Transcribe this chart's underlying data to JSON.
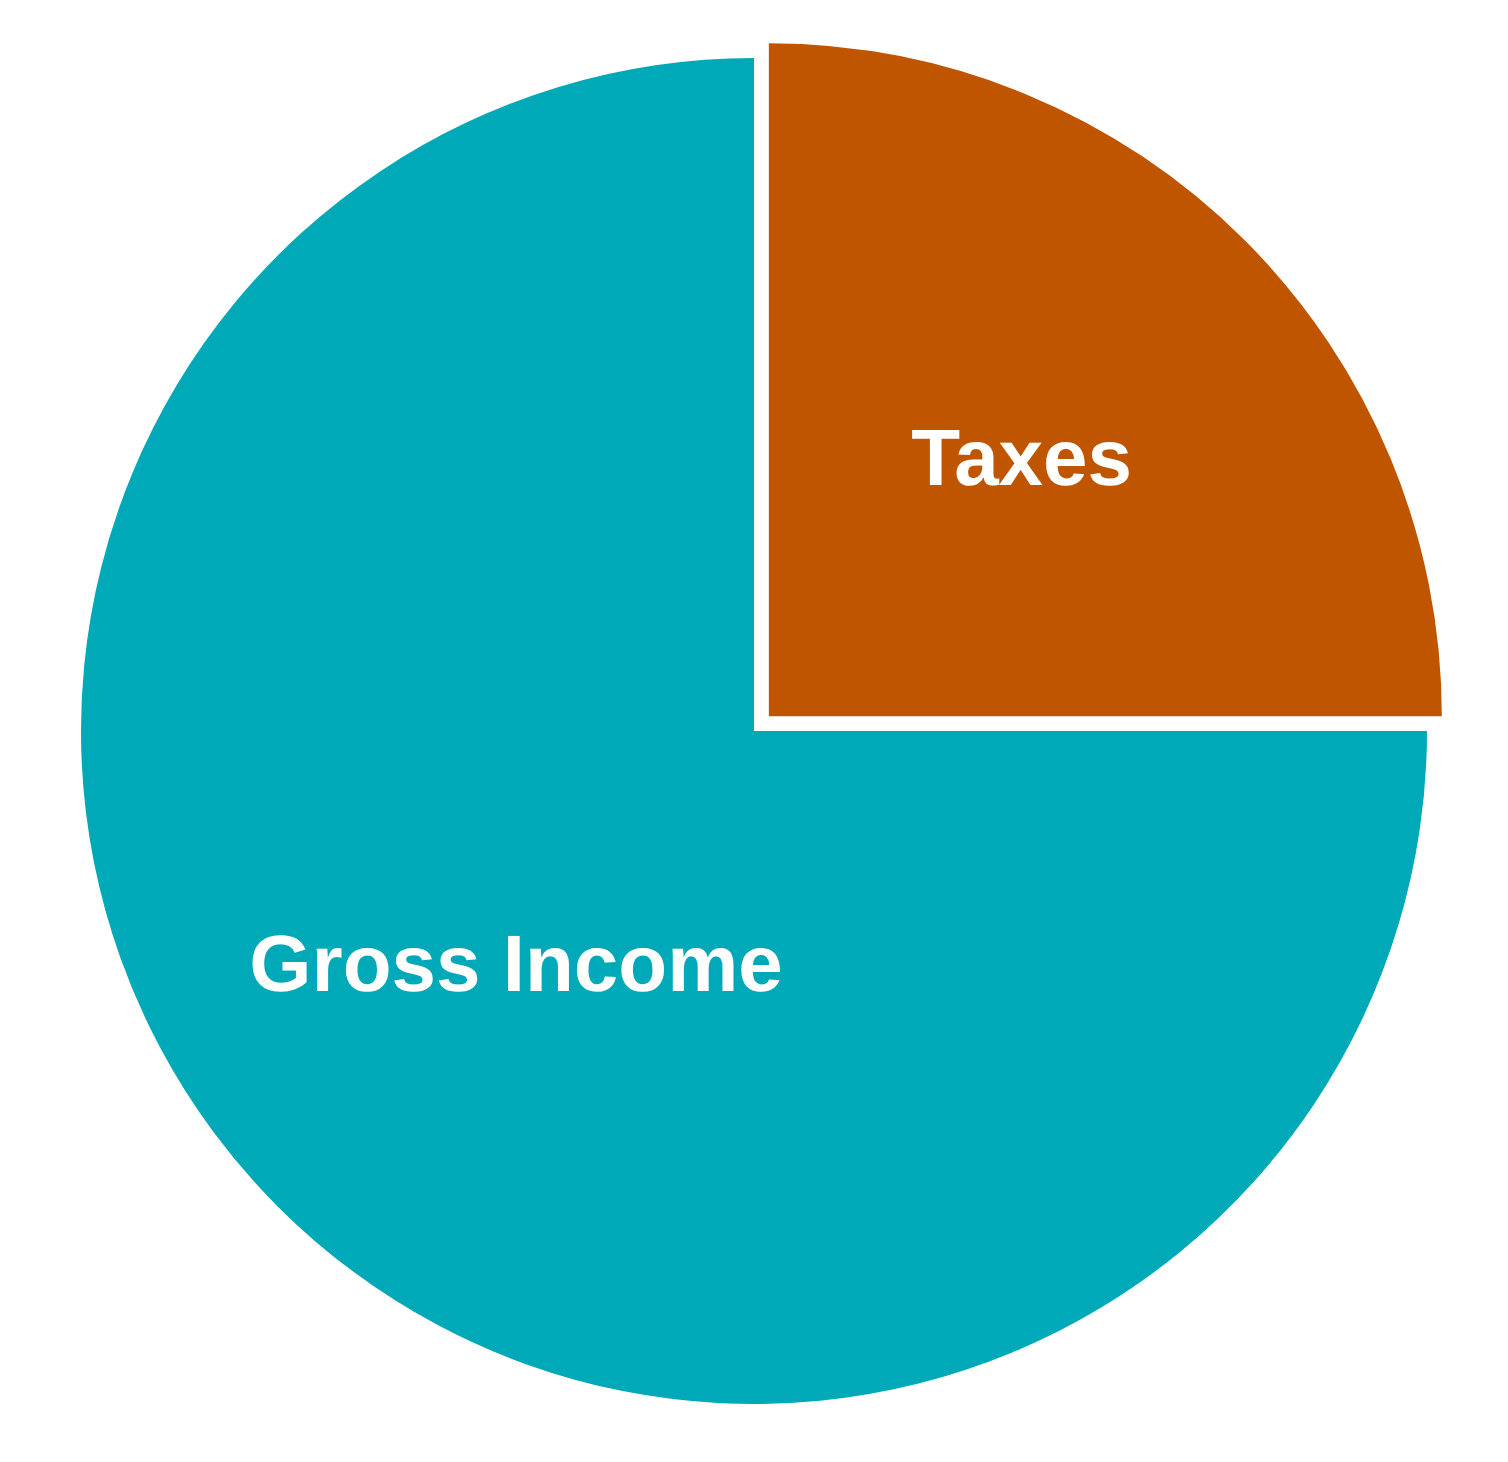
{
  "chart_data": {
    "type": "pie",
    "categories": [
      "Taxes",
      "Gross Income"
    ],
    "values": [
      25,
      75
    ],
    "colors": [
      "#c05500",
      "#00a9b8"
    ],
    "data_labels": false,
    "legend": false
  }
}
